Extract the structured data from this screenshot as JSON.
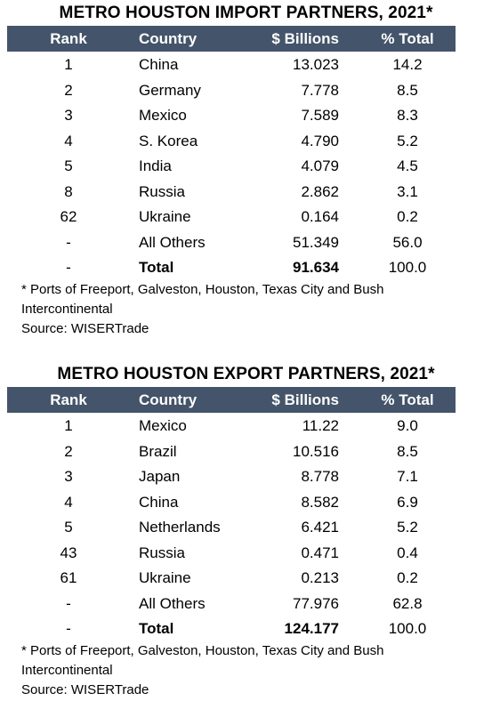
{
  "import_table": {
    "title": "METRO HOUSTON IMPORT PARTNERS, 2021*",
    "headers": [
      "Rank",
      "Country",
      "$ Billions",
      "% Total"
    ],
    "rows": [
      {
        "rank": "1",
        "country": "China",
        "value": "13.023",
        "pct": "14.2"
      },
      {
        "rank": "2",
        "country": "Germany",
        "value": "7.778",
        "pct": "8.5"
      },
      {
        "rank": "3",
        "country": "Mexico",
        "value": "7.589",
        "pct": "8.3"
      },
      {
        "rank": "4",
        "country": "S. Korea",
        "value": "4.790",
        "pct": "5.2"
      },
      {
        "rank": "5",
        "country": "India",
        "value": "4.079",
        "pct": "4.5"
      },
      {
        "rank": "8",
        "country": "Russia",
        "value": "2.862",
        "pct": "3.1"
      },
      {
        "rank": "62",
        "country": "Ukraine",
        "value": "0.164",
        "pct": "0.2"
      },
      {
        "rank": "-",
        "country": "All Others",
        "value": "51.349",
        "pct": "56.0"
      }
    ],
    "total": {
      "rank": "-",
      "country": "Total",
      "value": "91.634",
      "pct": "100.0"
    },
    "footnote_line1": "* Ports of Freeport, Galveston, Houston, Texas City and Bush",
    "footnote_line2": "Intercontinental",
    "source": "Source: WISERTrade"
  },
  "export_table": {
    "title": "METRO HOUSTON EXPORT PARTNERS, 2021*",
    "headers": [
      "Rank",
      "Country",
      "$ Billions",
      "% Total"
    ],
    "rows": [
      {
        "rank": "1",
        "country": "Mexico",
        "value": "11.22",
        "pct": "9.0"
      },
      {
        "rank": "2",
        "country": "Brazil",
        "value": "10.516",
        "pct": "8.5"
      },
      {
        "rank": "3",
        "country": "Japan",
        "value": "8.778",
        "pct": "7.1"
      },
      {
        "rank": "4",
        "country": "China",
        "value": "8.582",
        "pct": "6.9"
      },
      {
        "rank": "5",
        "country": "Netherlands",
        "value": "6.421",
        "pct": "5.2"
      },
      {
        "rank": "43",
        "country": "Russia",
        "value": "0.471",
        "pct": "0.4"
      },
      {
        "rank": "61",
        "country": "Ukraine",
        "value": "0.213",
        "pct": "0.2"
      },
      {
        "rank": "-",
        "country": "All Others",
        "value": "77.976",
        "pct": "62.8"
      }
    ],
    "total": {
      "rank": "-",
      "country": "Total",
      "value": "124.177",
      "pct": "100.0"
    },
    "footnote_line1": "* Ports of Freeport, Galveston, Houston, Texas City and Bush",
    "footnote_line2": "Intercontinental",
    "source": "Source: WISERTrade"
  },
  "colors": {
    "header_bg": "#44546a",
    "header_text": "#ffffff"
  }
}
